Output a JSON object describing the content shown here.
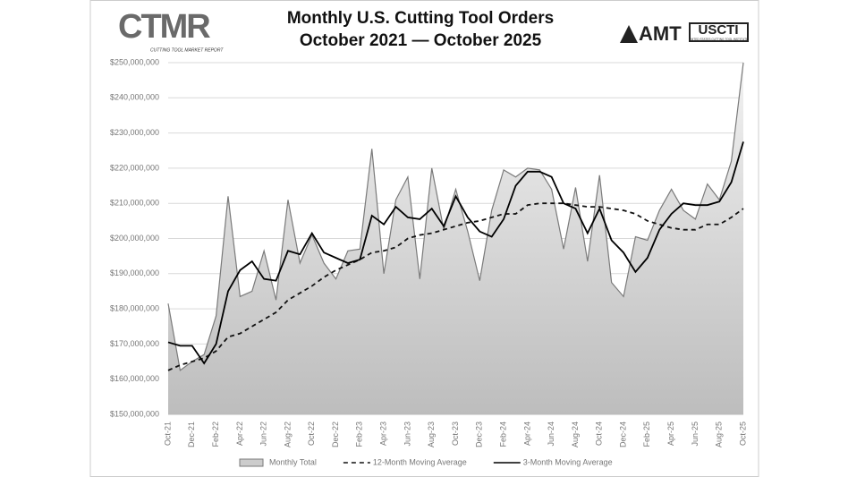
{
  "chart_data": {
    "type": "line",
    "title": "Monthly U.S. Cutting Tool Orders",
    "subtitle": "October 2021 — October 2025",
    "logo_left": "CTMR",
    "logo_left_caption": "CUTTING TOOL MARKET REPORT",
    "logo_right_1": "AMT",
    "logo_right_2": "USCTI",
    "logo_right_2_caption": "UNITED STATES CUTTING TOOL INSTITUTE",
    "categories": [
      "Oct-21",
      null,
      "Dec-21",
      null,
      "Feb-22",
      null,
      "Apr-22",
      null,
      "Jun-22",
      null,
      "Aug-22",
      null,
      "Oct-22",
      null,
      "Dec-22",
      null,
      "Feb-23",
      null,
      "Apr-23",
      null,
      "Jun-23",
      null,
      "Aug-23",
      null,
      "Oct-23",
      null,
      "Dec-23",
      null,
      "Feb-24",
      null,
      "Apr-24",
      null,
      "Jun-24",
      null,
      "Aug-24",
      null,
      "Oct-24",
      null,
      "Dec-24",
      null,
      "Feb-25",
      null,
      "Apr-25",
      null,
      "Jun-25",
      null,
      "Aug-25",
      null,
      "Oct-25"
    ],
    "series": [
      {
        "name": "Monthly Total",
        "type": "area",
        "color": "#7a7a7a",
        "dashed": false,
        "values": [
          181500000,
          162500000,
          165000000,
          167000000,
          178000000,
          212000000,
          183500000,
          185000000,
          196500000,
          182500000,
          211000000,
          193000000,
          201000000,
          193000000,
          188500000,
          196500000,
          197000000,
          225500000,
          190000000,
          211000000,
          217500000,
          188500000,
          220000000,
          202500000,
          214000000,
          202000000,
          188000000,
          208000000,
          219500000,
          217500000,
          220000000,
          219500000,
          214000000,
          197000000,
          214500000,
          193500000,
          218000000,
          187500000,
          183500000,
          200500000,
          199500000,
          208000000,
          214000000,
          208000000,
          205500000,
          215500000,
          211000000,
          222000000,
          250000000
        ]
      },
      {
        "name": "12-Month Moving Average",
        "type": "line",
        "color": "#111111",
        "dashed": true,
        "values": [
          162500000,
          164000000,
          165000000,
          166000000,
          168000000,
          172000000,
          173000000,
          175000000,
          177000000,
          179000000,
          182500000,
          184500000,
          186500000,
          189000000,
          191000000,
          192500000,
          194000000,
          196000000,
          196500000,
          197500000,
          200000000,
          201000000,
          201500000,
          202500000,
          203500000,
          204500000,
          205000000,
          206000000,
          207000000,
          207000000,
          209500000,
          210000000,
          210000000,
          210000000,
          209500000,
          209000000,
          209000000,
          208500000,
          208000000,
          207000000,
          205000000,
          204000000,
          203000000,
          202500000,
          202500000,
          204000000,
          204000000,
          206000000,
          208500000
        ]
      },
      {
        "name": "3-Month Moving Average",
        "type": "line",
        "color": "#000000",
        "dashed": false,
        "values": [
          170500000,
          169500000,
          169500000,
          164500000,
          170000000,
          185000000,
          191000000,
          193500000,
          188500000,
          188000000,
          196500000,
          195500000,
          201500000,
          196000000,
          194500000,
          193000000,
          194000000,
          206500000,
          204000000,
          209000000,
          206000000,
          205500000,
          208500000,
          203500000,
          212000000,
          206000000,
          202000000,
          200500000,
          205500000,
          215000000,
          219000000,
          219000000,
          217500000,
          210000000,
          208500000,
          201500000,
          208500000,
          199500000,
          196000000,
          190500000,
          194500000,
          202500000,
          207000000,
          210000000,
          209500000,
          209500000,
          210500000,
          216000000,
          227500000
        ]
      }
    ],
    "ylim": [
      150000000,
      250000000
    ],
    "yticks": [
      {
        "value": 150000000,
        "label": "$150,000,000"
      },
      {
        "value": 160000000,
        "label": "$160,000,000"
      },
      {
        "value": 170000000,
        "label": "$170,000,000"
      },
      {
        "value": 180000000,
        "label": "$180,000,000"
      },
      {
        "value": 190000000,
        "label": "$190,000,000"
      },
      {
        "value": 200000000,
        "label": "$200,000,000"
      },
      {
        "value": 210000000,
        "label": "$210,000,000"
      },
      {
        "value": 220000000,
        "label": "$220,000,000"
      },
      {
        "value": 230000000,
        "label": "$230,000,000"
      },
      {
        "value": 240000000,
        "label": "$240,000,000"
      },
      {
        "value": 250000000,
        "label": "$250,000,000"
      }
    ],
    "grid": true,
    "legend": "bottom"
  }
}
